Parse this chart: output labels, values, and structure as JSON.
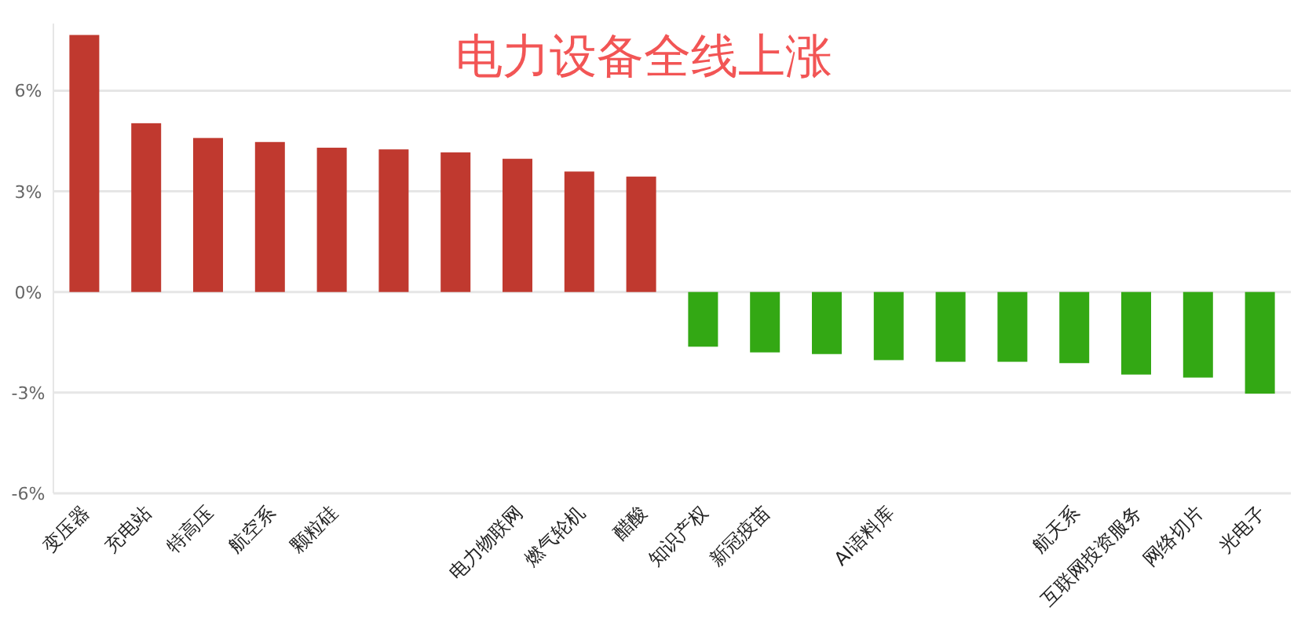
{
  "chart_data": {
    "type": "bar",
    "title": "电力设备全线上涨",
    "categories": [
      "变压器",
      "充电站",
      "特高压",
      "航空系",
      "颗粒硅",
      null,
      null,
      "电力物联网",
      "燃气轮机",
      "醋酸",
      "知识产权",
      "新冠疫苗",
      null,
      "AI语料库",
      null,
      null,
      "航天系",
      "互联网投资服务",
      "网络切片",
      "光电子"
    ],
    "values": [
      7.66,
      5.03,
      4.59,
      4.47,
      4.3,
      4.25,
      4.16,
      3.97,
      3.59,
      3.44,
      -1.63,
      -1.8,
      -1.85,
      -2.03,
      -2.08,
      -2.08,
      -2.12,
      -2.46,
      -2.55,
      -3.03
    ],
    "colors": [
      "#c0392f",
      "#c0392f",
      "#c0392f",
      "#c0392f",
      "#c0392f",
      "#c0392f",
      "#c0392f",
      "#c0392f",
      "#c0392f",
      "#c0392f",
      "#33a814",
      "#33a814",
      "#33a814",
      "#33a814",
      "#33a814",
      "#33a814",
      "#33a814",
      "#33a814",
      "#33a814",
      "#33a814"
    ],
    "ylim": [
      -6,
      8
    ],
    "yticks": [
      {
        "value": -6,
        "label": "-6%"
      },
      {
        "value": -3,
        "label": "-3%"
      },
      {
        "value": 0,
        "label": "0%"
      },
      {
        "value": 3,
        "label": "3%"
      },
      {
        "value": 6,
        "label": "6%"
      }
    ],
    "grid": "y"
  }
}
